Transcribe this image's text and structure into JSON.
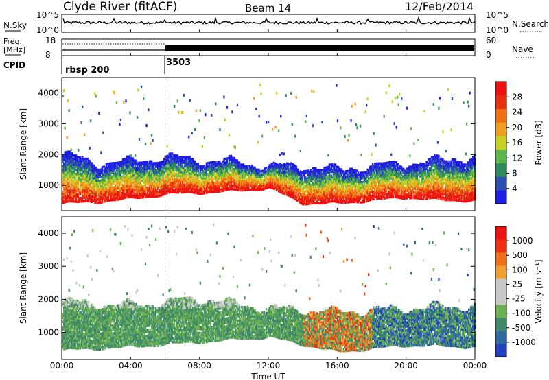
{
  "header": {
    "station": "Clyde River (fitACF)",
    "beam": "Beam 14",
    "date": "12/Feb/2014"
  },
  "panels": {
    "nsky": {
      "left_label": "N.Sky",
      "right_label": "N.Search",
      "tick_top": "10^5",
      "tick_bottom": "10^0",
      "right_tick_top": "10^5",
      "right_tick_bottom": "10^0"
    },
    "freq": {
      "left_label_1": "Freq.",
      "left_label_2": "[MHz]",
      "tick_top": "18",
      "tick_bottom": "8",
      "right_label": "Nave",
      "right_tick_top": "60",
      "right_tick_bottom": "0"
    },
    "cpid": {
      "label": "CPID",
      "entries": [
        {
          "text": "rbsp 200",
          "start_hour": 0
        },
        {
          "text": "3503",
          "start_hour": 6
        }
      ]
    }
  },
  "axes": {
    "ylabel": "Slant Range [km]",
    "xlabel": "Time UT",
    "x_ticks": [
      "00:00",
      "04:00",
      "08:00",
      "12:00",
      "16:00",
      "20:00",
      "00:00"
    ],
    "y_ticks": [
      "1000",
      "2000",
      "3000",
      "4000"
    ]
  },
  "colorbars": {
    "power": {
      "label": "Power [dB]",
      "ticks": [
        "4",
        "8",
        "12",
        "16",
        "20",
        "24",
        "28"
      ],
      "colors": [
        "#1e1ee6",
        "#2a4fb0",
        "#2e8a5c",
        "#5ab84a",
        "#c8d020",
        "#f0a020",
        "#f07010",
        "#e83010",
        "#f01010"
      ]
    },
    "velocity": {
      "label": "Velocity [m s⁻¹]",
      "ticks": [
        "1000",
        "500",
        "100",
        "25",
        "-25",
        "-100",
        "-500",
        "-1000"
      ],
      "colors": [
        "#2040c0",
        "#2e6aa0",
        "#3e8a6a",
        "#6ab050",
        "#c8c8c8",
        "#c8c8c8",
        "#f0a030",
        "#f07018",
        "#f03010",
        "#f01010"
      ]
    }
  },
  "chart_data": {
    "type": "heatmap",
    "x_range_hours": [
      0,
      24
    ],
    "y_range_km": [
      180,
      4500
    ],
    "power_range_db": [
      0,
      30
    ],
    "velocity_range_ms": [
      -1000,
      1000
    ],
    "power_envelope_km": [
      {
        "t": 0,
        "low": 400,
        "high": 2000
      },
      {
        "t": 2,
        "low": 450,
        "high": 1700
      },
      {
        "t": 4,
        "low": 550,
        "high": 1750
      },
      {
        "t": 6,
        "low": 700,
        "high": 1900
      },
      {
        "t": 8,
        "low": 750,
        "high": 1800
      },
      {
        "t": 10,
        "low": 800,
        "high": 1750
      },
      {
        "t": 12,
        "low": 900,
        "high": 1600
      },
      {
        "t": 14,
        "low": 400,
        "high": 1600
      },
      {
        "t": 16,
        "low": 400,
        "high": 1500
      },
      {
        "t": 18,
        "low": 500,
        "high": 1600
      },
      {
        "t": 20,
        "low": 600,
        "high": 1700
      },
      {
        "t": 22,
        "low": 500,
        "high": 1800
      },
      {
        "t": 24,
        "low": 500,
        "high": 1900
      }
    ],
    "velocity_envelope_km": [
      {
        "t": 0,
        "low": 450,
        "high": 1900
      },
      {
        "t": 4,
        "low": 550,
        "high": 1800
      },
      {
        "t": 8,
        "low": 700,
        "high": 2000
      },
      {
        "t": 12,
        "low": 850,
        "high": 1700
      },
      {
        "t": 16,
        "low": 400,
        "high": 1600
      },
      {
        "t": 20,
        "low": 600,
        "high": 1700
      },
      {
        "t": 24,
        "low": 550,
        "high": 1800
      }
    ]
  }
}
